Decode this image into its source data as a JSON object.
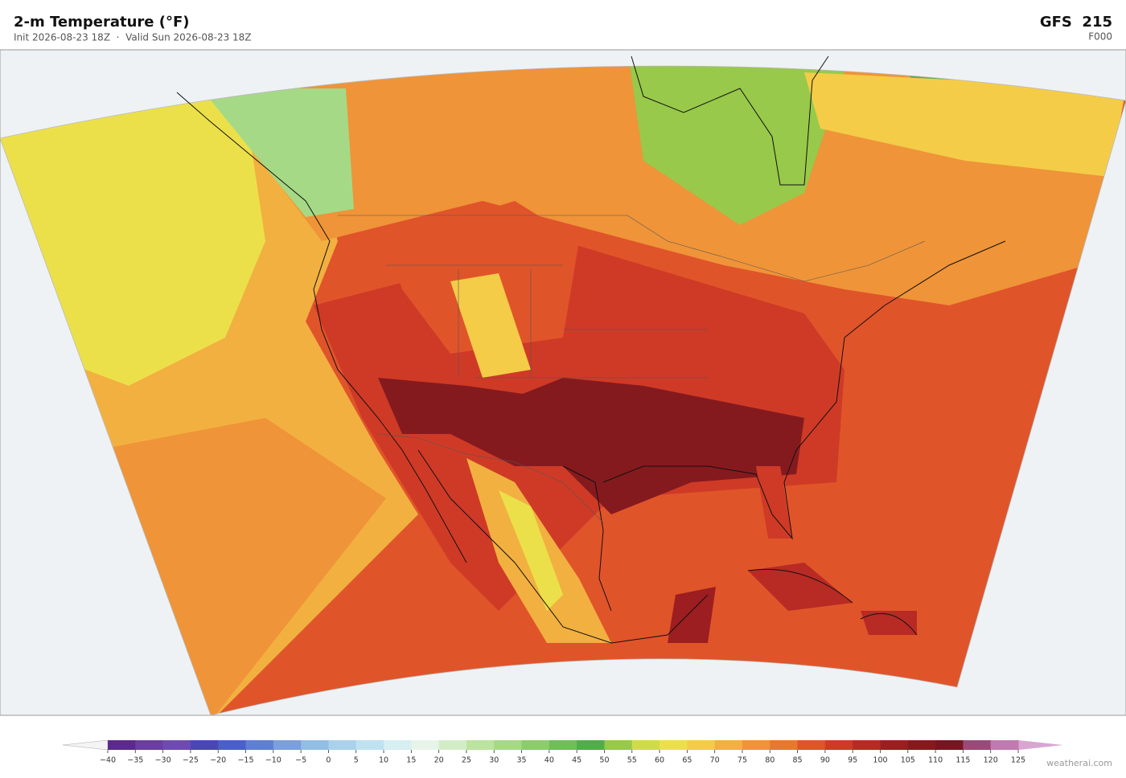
{
  "header": {
    "title": "2-m Temperature  (°F)",
    "subtitle": "Init 2026-08-23 18Z  ·  Valid Sun 2026-08-23 18Z",
    "model": "GFS  215",
    "forecast_hour": "F000"
  },
  "colorbar": {
    "ticks": [
      {
        "value": -40,
        "label": "−40"
      },
      {
        "value": -35,
        "label": "−35"
      },
      {
        "value": -30,
        "label": "−30"
      },
      {
        "value": -25,
        "label": "−25"
      },
      {
        "value": -20,
        "label": "−20"
      },
      {
        "value": -15,
        "label": "−15"
      },
      {
        "value": -10,
        "label": "−10"
      },
      {
        "value": -5,
        "label": "−5"
      },
      0,
      5,
      10,
      15,
      20,
      25,
      30,
      35,
      40,
      45,
      50,
      55,
      60,
      65,
      70,
      75,
      80,
      85,
      90,
      95,
      100,
      105,
      110,
      115,
      120,
      125
    ],
    "colors": [
      "#5b2a8c",
      "#6a3fa0",
      "#6e4bb0",
      "#4a46b8",
      "#4b5fc8",
      "#5f7fd0",
      "#7ca0dc",
      "#92bde4",
      "#a9d2ea",
      "#c0e2f0",
      "#d7eef2",
      "#e6f4ea",
      "#d3ecc8",
      "#bde3a0",
      "#a6d985",
      "#8ccc6c",
      "#6fbe5a",
      "#50ad4a",
      "#98c94a",
      "#cfdc48",
      "#ece04a",
      "#f4cc48",
      "#f2b040",
      "#ef9438",
      "#e8782f",
      "#e0542a",
      "#cf3a26",
      "#b82a24",
      "#9c1e20",
      "#851a1e",
      "#761621",
      "#9a4a78",
      "#c07ab0"
    ],
    "under_color": "#f4f4f4",
    "over_color": "#d8a6d0"
  },
  "footer": {
    "credit": "weatherai.com"
  }
}
